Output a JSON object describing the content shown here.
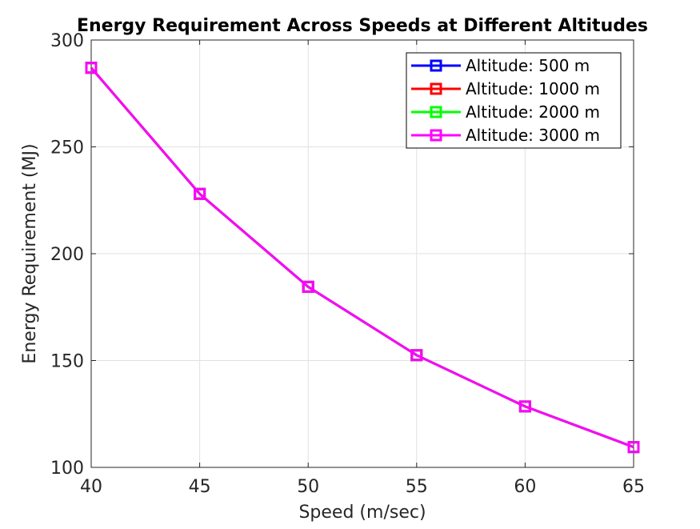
{
  "chart_data": {
    "type": "line",
    "title": "Energy Requirement Across Speeds at Different Altitudes",
    "xlabel": "Speed (m/sec)",
    "ylabel": "Energy Requirement (MJ)",
    "x": [
      40,
      45,
      50,
      55,
      60,
      65
    ],
    "xlim": [
      40,
      65
    ],
    "ylim": [
      100,
      300
    ],
    "xticks": [
      40,
      45,
      50,
      55,
      60,
      65
    ],
    "yticks": [
      100,
      150,
      200,
      250,
      300
    ],
    "grid": true,
    "legend_position": "top-right",
    "marker": "square",
    "series": [
      {
        "name": "Altitude: 500 m",
        "color": "#0000ff",
        "values": [
          287,
          228,
          184.5,
          152.5,
          128.5,
          109.5
        ]
      },
      {
        "name": "Altitude: 1000 m",
        "color": "#ff0000",
        "values": [
          287,
          228,
          184.5,
          152.5,
          128.5,
          109.5
        ]
      },
      {
        "name": "Altitude: 2000 m",
        "color": "#00ff00",
        "values": [
          287,
          228,
          184.5,
          152.5,
          128.5,
          109.5
        ]
      },
      {
        "name": "Altitude: 3000 m",
        "color": "#ff00ff",
        "values": [
          287,
          228,
          184.5,
          152.5,
          128.5,
          109.5
        ]
      }
    ]
  }
}
